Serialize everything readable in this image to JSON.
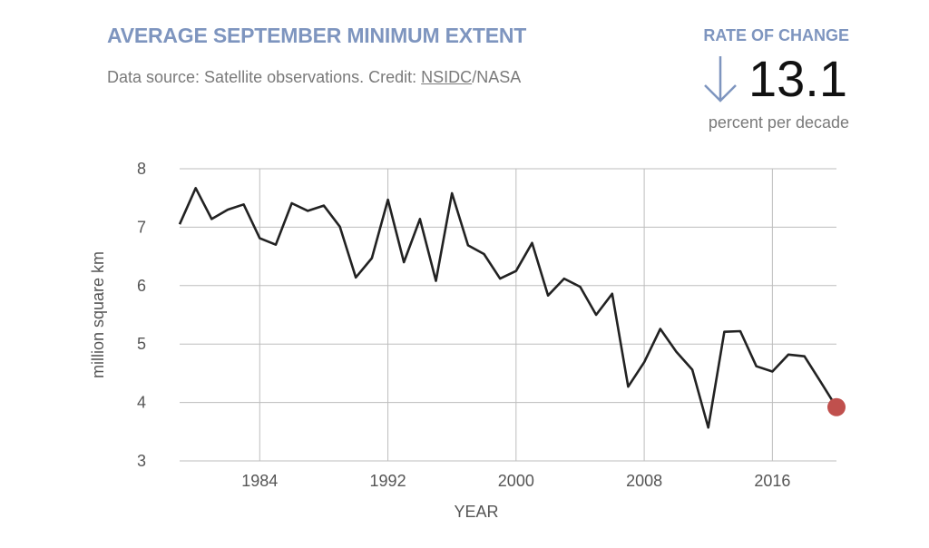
{
  "header": {
    "title": "AVERAGE SEPTEMBER MINIMUM EXTENT",
    "source_prefix": "Data source: Satellite observations. Credit: ",
    "source_link": "NSIDC",
    "source_suffix": "/NASA"
  },
  "rate": {
    "label": "RATE OF CHANGE",
    "value": "13.1",
    "unit": "percent per decade",
    "direction": "down",
    "arrow_color": "#7e95bf"
  },
  "chart_data": {
    "type": "line",
    "xlabel": "YEAR",
    "ylabel": "million square km",
    "xlim": [
      1979,
      2020
    ],
    "ylim": [
      3,
      8
    ],
    "xticks": [
      1984,
      1992,
      2000,
      2008,
      2016
    ],
    "yticks": [
      3,
      4,
      5,
      6,
      7,
      8
    ],
    "grid": true,
    "line_color": "#222222",
    "highlight_color": "#c0504d",
    "series": [
      {
        "x": [
          1979,
          1980,
          1981,
          1982,
          1983,
          1984,
          1985,
          1986,
          1987,
          1988,
          1989,
          1990,
          1991,
          1992,
          1993,
          1994,
          1995,
          1996,
          1997,
          1998,
          1999,
          2000,
          2001,
          2002,
          2003,
          2004,
          2005,
          2006,
          2007,
          2008,
          2009,
          2010,
          2011,
          2012,
          2013,
          2014,
          2015,
          2016,
          2017,
          2018,
          2019,
          2020
        ],
        "y": [
          7.05,
          7.67,
          7.14,
          7.3,
          7.39,
          6.81,
          6.7,
          7.41,
          7.28,
          7.37,
          7.01,
          6.14,
          6.47,
          7.47,
          6.4,
          7.14,
          6.08,
          7.58,
          6.69,
          6.54,
          6.12,
          6.25,
          6.73,
          5.83,
          6.12,
          5.98,
          5.5,
          5.86,
          4.27,
          4.69,
          5.26,
          4.87,
          4.56,
          3.57,
          5.21,
          5.22,
          4.62,
          4.53,
          4.82,
          4.79,
          4.36,
          3.92
        ]
      }
    ],
    "highlight_last": true
  }
}
